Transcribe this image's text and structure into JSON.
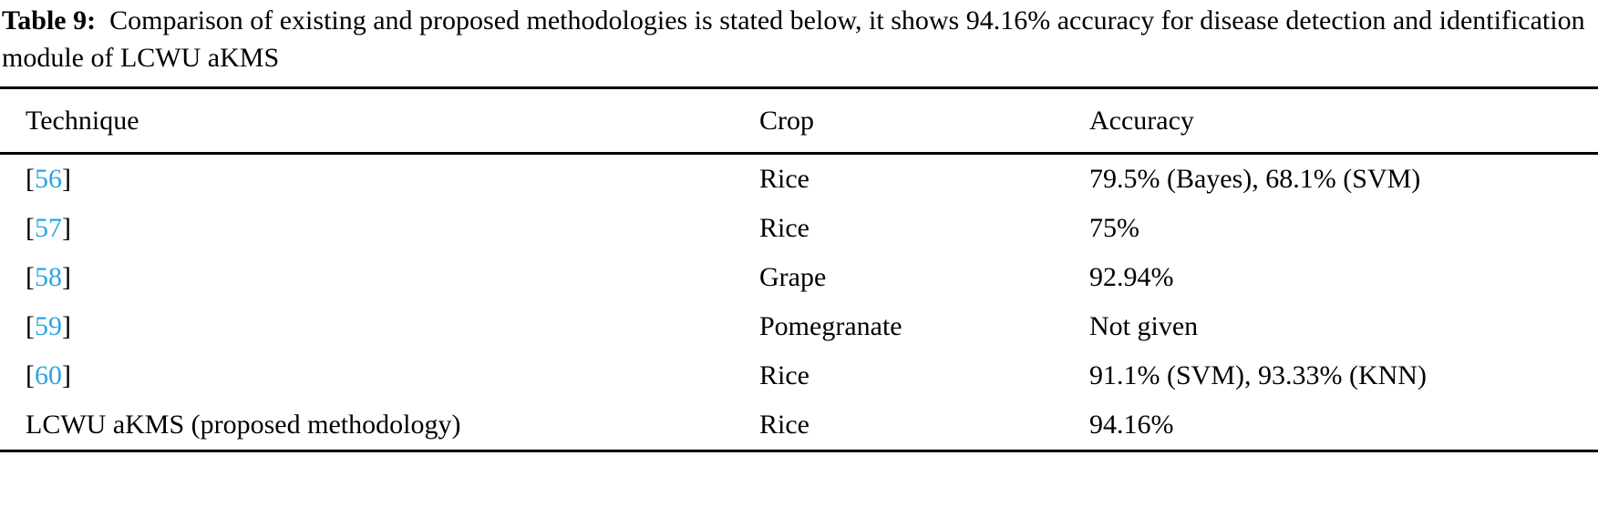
{
  "caption": {
    "label": "Table 9:",
    "text": "Comparison of existing and proposed methodologies is stated below, it shows 94.16% accuracy for disease detection and identification module of LCWU aKMS"
  },
  "table": {
    "headers": [
      "Technique",
      "Crop",
      "Accuracy"
    ],
    "rows": [
      {
        "ref": "56",
        "technique": "",
        "crop": "Rice",
        "accuracy": "79.5% (Bayes), 68.1% (SVM)"
      },
      {
        "ref": "57",
        "technique": "",
        "crop": "Rice",
        "accuracy": "75%"
      },
      {
        "ref": "58",
        "technique": "",
        "crop": "Grape",
        "accuracy": "92.94%"
      },
      {
        "ref": "59",
        "technique": "",
        "crop": "Pomegranate",
        "accuracy": "Not given"
      },
      {
        "ref": "60",
        "technique": "",
        "crop": "Rice",
        "accuracy": "91.1% (SVM), 93.33% (KNN)"
      },
      {
        "ref": "",
        "technique": "LCWU aKMS (proposed methodology)",
        "crop": "Rice",
        "accuracy": "94.16%"
      }
    ]
  },
  "colors": {
    "link": "#29a8e0"
  }
}
